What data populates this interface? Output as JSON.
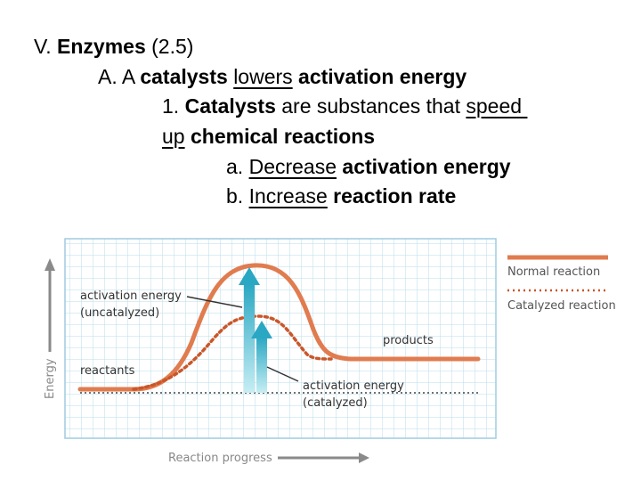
{
  "outline": {
    "l1": {
      "prefix": "V. ",
      "bold": "Enzymes",
      "suffix": " (2.5)"
    },
    "l2": {
      "prefix": "A. A ",
      "bold1": "catalysts",
      "space": " ",
      "under": "lowers",
      "bold2": " activation energy"
    },
    "l3": {
      "prefix": "1. ",
      "bold": "Catalysts",
      "mid": " are substances that ",
      "under": "speed "
    },
    "l4": {
      "under": "up",
      "bold": " chemical reactions"
    },
    "l5": {
      "prefix": "a. ",
      "under": "Decrease",
      "bold": " activation energy"
    },
    "l6": {
      "prefix": "b. ",
      "under": "Increase",
      "bold": " reaction rate"
    }
  },
  "diagram": {
    "labels": {
      "activation_uncat_1": "activation energy",
      "activation_uncat_2": "(uncatalyzed)",
      "reactants": "reactants",
      "products": "products",
      "activation_cat_1": "activation energy",
      "activation_cat_2": "(catalyzed)",
      "y_axis": "Energy",
      "x_axis": "Reaction progress"
    },
    "legend": {
      "normal": "Normal reaction",
      "catalyzed": "Catalyzed reaction"
    },
    "colors": {
      "normal_curve": "#e07c4f",
      "catalyzed_curve": "#c9572a",
      "arrow": "#2bb3c8",
      "grid": "#b9dcea",
      "arrow_axis": "#8a8a8a"
    }
  }
}
